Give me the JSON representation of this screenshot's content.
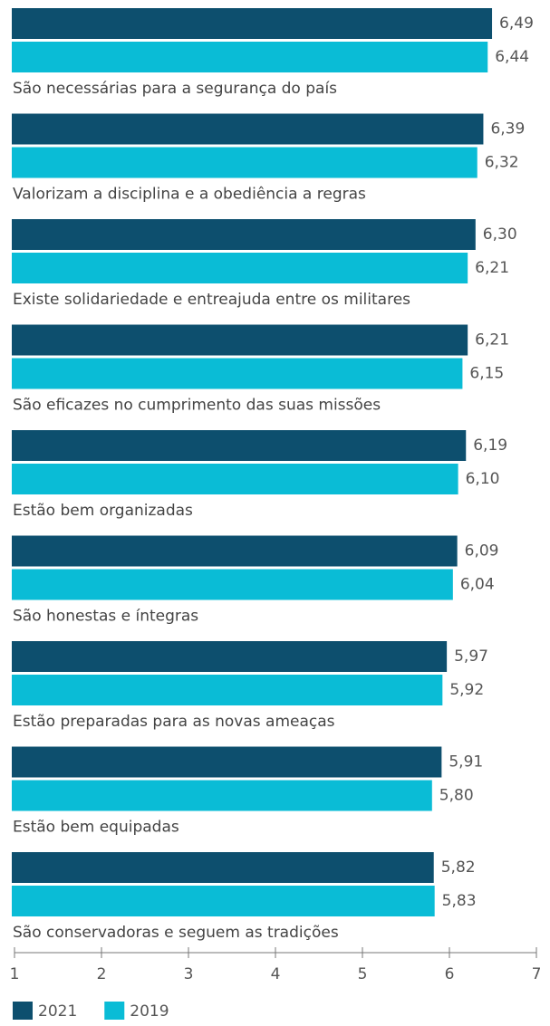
{
  "chart_data": {
    "type": "bar",
    "orientation": "horizontal",
    "categories": [
      "São necessárias para a segurança do país",
      "Valorizam a disciplina e a obediência a regras",
      "Existe solidariedade e entreajuda entre os militares",
      "São eficazes no cumprimento das suas missões",
      "Estão bem organizadas",
      "São honestas e íntegras",
      "Estão preparadas para as novas ameaças",
      "Estão bem equipadas",
      "São conservadoras e seguem as tradições"
    ],
    "series": [
      {
        "name": "2021",
        "color": "#0d4f6e",
        "values": [
          6.49,
          6.39,
          6.3,
          6.21,
          6.19,
          6.09,
          5.97,
          5.91,
          5.82
        ],
        "value_labels": [
          "6,49",
          "6,39",
          "6,30",
          "6,21",
          "6,19",
          "6,09",
          "5,97",
          "5,91",
          "5,82"
        ]
      },
      {
        "name": "2019",
        "color": "#0abcd6",
        "values": [
          6.44,
          6.32,
          6.21,
          6.15,
          6.1,
          6.04,
          5.92,
          5.8,
          5.83
        ],
        "value_labels": [
          "6,44",
          "6,32",
          "6,21",
          "6,15",
          "6,10",
          "6,04",
          "5,92",
          "5,80",
          "5,83"
        ]
      }
    ],
    "xlim": [
      1,
      7
    ],
    "xticks": [
      1,
      2,
      3,
      4,
      5,
      6,
      7
    ],
    "legend": "bottom-left"
  }
}
